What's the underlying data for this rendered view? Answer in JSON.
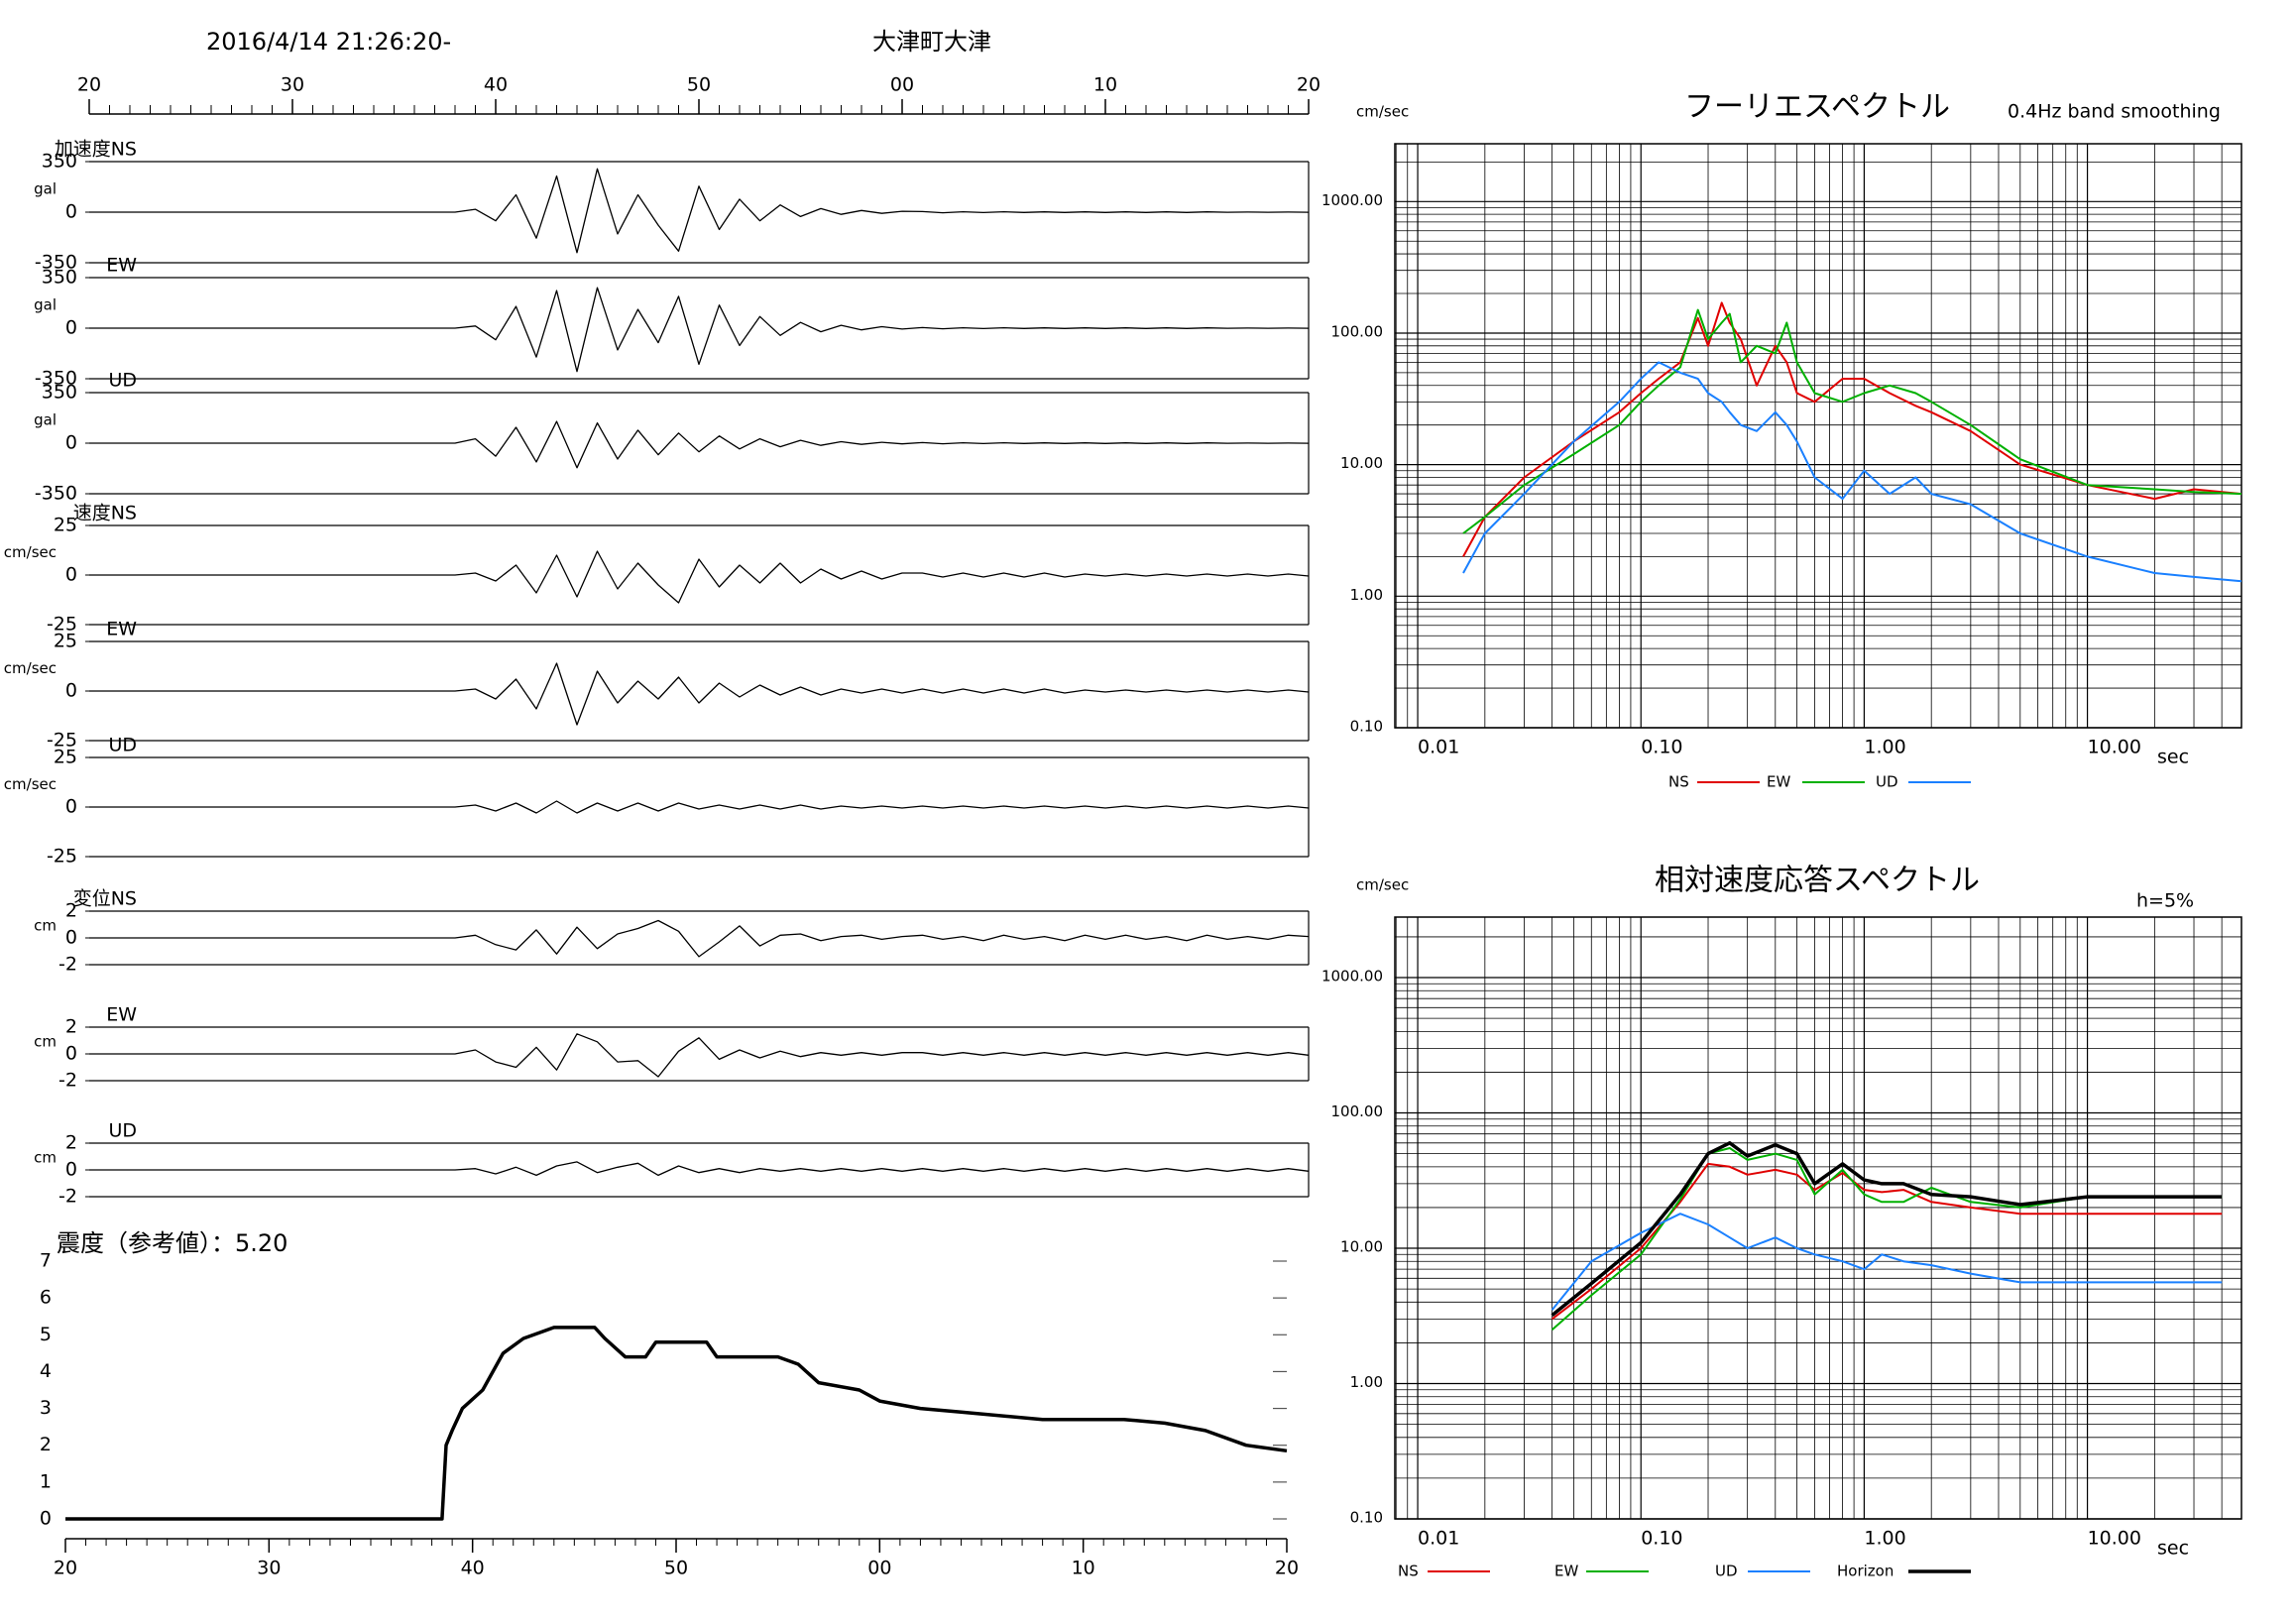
{
  "chart_data": [
    {
      "type": "waveform",
      "title": "大津町大津",
      "subtitle": "2016/4/14 21:26:20-",
      "xlim": [
        20,
        80
      ],
      "xticks": [
        20,
        30,
        40,
        50,
        {
          "value": 60,
          "label": "00"
        },
        {
          "value": 70,
          "label": "10"
        },
        {
          "value": 80,
          "label": "20"
        }
      ],
      "x": [
        20,
        38,
        39,
        40,
        41,
        42,
        43,
        44,
        45,
        46,
        47,
        48,
        49,
        50,
        51,
        52,
        53,
        54,
        55,
        56,
        57,
        58,
        59,
        60,
        61,
        62,
        63,
        64,
        65,
        66,
        67,
        68,
        69,
        70,
        71,
        72,
        73,
        74,
        75,
        76,
        77,
        78,
        79,
        80
      ],
      "panels": [
        {
          "label": "加速度NS",
          "unit": "gal",
          "ylim": [
            -350,
            350
          ],
          "yticks": [
            -350,
            0,
            350
          ],
          "values": [
            0,
            0,
            20,
            -60,
            120,
            -180,
            250,
            -280,
            300,
            -150,
            120,
            -90,
            -270,
            180,
            -120,
            90,
            -60,
            50,
            -30,
            25,
            -15,
            12,
            -8,
            6,
            4,
            -4,
            3,
            -3,
            3,
            -2,
            2,
            -2,
            2,
            -2,
            2,
            -2,
            2,
            -2,
            2,
            -1,
            1,
            -1,
            1,
            -1
          ]
        },
        {
          "label": "EW",
          "unit": "gal",
          "ylim": [
            -350,
            350
          ],
          "yticks": [
            -350,
            0,
            350
          ],
          "values": [
            0,
            0,
            15,
            -80,
            150,
            -200,
            260,
            -300,
            280,
            -150,
            130,
            -100,
            220,
            -250,
            160,
            -120,
            80,
            -50,
            40,
            -25,
            20,
            -12,
            10,
            -6,
            4,
            -4,
            3,
            -3,
            3,
            -2,
            2,
            -2,
            2,
            -2,
            2,
            -2,
            2,
            -2,
            2,
            -1,
            1,
            -1,
            1,
            -1
          ]
        },
        {
          "label": "UD",
          "unit": "gal",
          "ylim": [
            -350,
            350
          ],
          "yticks": [
            -350,
            0,
            350
          ],
          "values": [
            0,
            0,
            30,
            -90,
            110,
            -130,
            150,
            -170,
            140,
            -110,
            90,
            -80,
            70,
            -60,
            50,
            -40,
            30,
            -25,
            20,
            -15,
            10,
            -8,
            6,
            -5,
            4,
            -4,
            3,
            -3,
            3,
            -2,
            2,
            -2,
            2,
            -2,
            2,
            -2,
            2,
            -2,
            2,
            -1,
            1,
            -1,
            1,
            -1
          ]
        },
        {
          "label": "速度NS",
          "unit": "cm/sec",
          "ylim": [
            -25,
            25
          ],
          "yticks": [
            -25,
            0,
            25
          ],
          "values": [
            0,
            0,
            1,
            -3,
            5,
            -9,
            10,
            -11,
            12,
            -7,
            6,
            -5,
            -14,
            8,
            -6,
            5,
            -4,
            6,
            -4,
            3,
            -2,
            2,
            -2,
            1,
            1,
            -1,
            1,
            -1,
            1,
            -1,
            1,
            -1,
            0.5,
            -0.5,
            0.5,
            -0.5,
            0.5,
            -0.5,
            0.5,
            -0.5,
            0.5,
            -0.5,
            0.5,
            -0.5
          ]
        },
        {
          "label": "EW",
          "unit": "cm/sec",
          "ylim": [
            -25,
            25
          ],
          "yticks": [
            -25,
            0,
            25
          ],
          "values": [
            0,
            0,
            1,
            -4,
            6,
            -9,
            14,
            -17,
            10,
            -6,
            5,
            -4,
            7,
            -6,
            4,
            -3,
            3,
            -2,
            2,
            -2,
            1,
            -1,
            1,
            -1,
            1,
            -1,
            1,
            -1,
            1,
            -1,
            1,
            -1,
            0.5,
            -0.5,
            0.5,
            -0.5,
            0.5,
            -0.5,
            0.5,
            -0.5,
            0.5,
            -0.5,
            0.5,
            -0.5
          ]
        },
        {
          "label": "UD",
          "unit": "cm/sec",
          "ylim": [
            -25,
            25
          ],
          "yticks": [
            -25,
            0,
            25
          ],
          "values": [
            0,
            0,
            1,
            -2,
            2,
            -3,
            3,
            -3,
            2,
            -2,
            2,
            -2,
            2,
            -1,
            1,
            -1,
            1,
            -1,
            1,
            -1,
            0.5,
            -0.5,
            0.5,
            -0.5,
            0.5,
            -0.5,
            0.5,
            -0.5,
            0.5,
            -0.5,
            0.5,
            -0.5,
            0.5,
            -0.5,
            0.5,
            -0.5,
            0.5,
            -0.5,
            0.5,
            -0.5,
            0.5,
            -0.5,
            0.5,
            -0.5
          ]
        },
        {
          "label": "変位NS",
          "unit": "cm",
          "ylim": [
            -2,
            2
          ],
          "yticks": [
            -2,
            0,
            2
          ],
          "values": [
            0,
            0,
            0.2,
            -0.5,
            -0.9,
            0.6,
            -1.2,
            0.8,
            -0.8,
            0.3,
            0.7,
            1.3,
            0.5,
            -1.4,
            -0.3,
            0.9,
            -0.6,
            0.2,
            0.3,
            -0.2,
            0.1,
            0.2,
            -0.1,
            0.1,
            0.2,
            -0.1,
            0.1,
            -0.2,
            0.2,
            -0.1,
            0.1,
            -0.2,
            0.2,
            -0.1,
            0.2,
            -0.1,
            0.1,
            -0.2,
            0.2,
            -0.1,
            0.1,
            -0.1,
            0.2,
            0.1
          ]
        },
        {
          "label": "EW",
          "unit": "cm",
          "ylim": [
            -2,
            2
          ],
          "yticks": [
            -2,
            0,
            2
          ],
          "values": [
            0,
            0,
            0.3,
            -0.6,
            -1.0,
            0.5,
            -1.2,
            1.5,
            0.9,
            -0.6,
            -0.5,
            -1.7,
            0.2,
            1.2,
            -0.4,
            0.3,
            -0.3,
            0.2,
            -0.2,
            0.1,
            -0.1,
            0.1,
            -0.1,
            0.1,
            0.1,
            -0.1,
            0.1,
            -0.1,
            0.1,
            -0.1,
            0.1,
            -0.1,
            0.1,
            -0.1,
            0.1,
            -0.1,
            0.1,
            -0.1,
            0.1,
            -0.1,
            0.1,
            -0.1,
            0.1,
            -0.1
          ]
        },
        {
          "label": "UD",
          "unit": "cm",
          "ylim": [
            -2,
            2
          ],
          "yticks": [
            -2,
            0,
            2
          ],
          "values": [
            0,
            0,
            0.1,
            -0.3,
            0.2,
            -0.4,
            0.3,
            0.6,
            -0.2,
            0.2,
            0.5,
            -0.4,
            0.3,
            -0.2,
            0.1,
            -0.2,
            0.1,
            -0.1,
            0.1,
            -0.1,
            0.1,
            -0.1,
            0.1,
            -0.1,
            0.1,
            -0.1,
            0.1,
            -0.1,
            0.1,
            -0.1,
            0.1,
            -0.1,
            0.1,
            -0.1,
            0.1,
            -0.1,
            0.1,
            -0.1,
            0.1,
            -0.1,
            0.1,
            -0.1,
            0.1,
            -0.1
          ]
        }
      ]
    },
    {
      "type": "line",
      "title": "震度（参考値）：5.20",
      "color": "#000000",
      "xlim": [
        20,
        80
      ],
      "xticks": [
        20,
        30,
        40,
        50,
        {
          "value": 60,
          "label": "00"
        },
        {
          "value": 70,
          "label": "10"
        },
        {
          "value": 80,
          "label": "20"
        }
      ],
      "ylim": [
        0,
        7
      ],
      "yticks": [
        0,
        1,
        2,
        3,
        4,
        5,
        6,
        7
      ],
      "x": [
        20,
        38.5,
        38.7,
        39,
        39.5,
        40.5,
        41.5,
        42.5,
        43.5,
        44,
        46,
        46.5,
        47.5,
        48.5,
        49,
        51.5,
        52,
        55,
        56,
        57,
        59,
        60,
        62,
        64,
        68,
        72,
        74,
        76,
        78,
        80
      ],
      "values": [
        0,
        0,
        2,
        2.4,
        3,
        3.5,
        4.5,
        4.9,
        5.1,
        5.2,
        5.2,
        4.9,
        4.4,
        4.4,
        4.8,
        4.8,
        4.4,
        4.4,
        4.2,
        3.7,
        3.5,
        3.2,
        3.0,
        2.9,
        2.7,
        2.7,
        2.6,
        2.4,
        2.0,
        1.85
      ]
    },
    {
      "type": "logline",
      "title": "フーリエスペクトル",
      "subtitle": "0.4Hz band smoothing",
      "y_label": "cm/sec",
      "x_label": "sec",
      "log_x": true,
      "log_y": true,
      "grid": true,
      "xlim": [
        0.0079,
        49
      ],
      "ylim": [
        0.1,
        2750
      ],
      "xticks": [
        0.01,
        {
          "value": 0.1,
          "label": "0.10"
        },
        {
          "value": 1,
          "label": "1.00"
        },
        {
          "value": 10,
          "label": "10.00"
        }
      ],
      "yticks": [
        {
          "value": 0.1,
          "label": "0.10"
        },
        {
          "value": 1,
          "label": "1.00"
        },
        {
          "value": 10,
          "label": "10.00"
        },
        {
          "value": 100,
          "label": "100.00"
        },
        {
          "value": 1000,
          "label": "1000.00"
        }
      ],
      "x": [
        0.016,
        0.02,
        0.03,
        0.05,
        0.08,
        0.1,
        0.12,
        0.15,
        0.18,
        0.2,
        0.23,
        0.25,
        0.28,
        0.33,
        0.4,
        0.45,
        0.5,
        0.6,
        0.8,
        1,
        1.3,
        1.7,
        2,
        3,
        5,
        10,
        20,
        30,
        49
      ],
      "series": [
        {
          "name": "NS",
          "color": "#e00000",
          "values": [
            2,
            4,
            8,
            15,
            25,
            35,
            45,
            60,
            130,
            80,
            170,
            120,
            90,
            40,
            80,
            60,
            35,
            30,
            45,
            45,
            35,
            28,
            25,
            18,
            10,
            7,
            5.5,
            6.5,
            6
          ]
        },
        {
          "name": "EW",
          "color": "#00b000",
          "values": [
            3,
            4,
            7,
            12,
            20,
            30,
            40,
            55,
            150,
            90,
            120,
            140,
            60,
            80,
            70,
            120,
            60,
            35,
            30,
            35,
            40,
            35,
            30,
            20,
            11,
            7,
            6.5,
            6.2,
            6
          ]
        },
        {
          "name": "UD",
          "color": "#1a80ff",
          "values": [
            1.5,
            3,
            6,
            15,
            30,
            45,
            60,
            50,
            45,
            35,
            30,
            25,
            20,
            18,
            25,
            20,
            15,
            8,
            5.5,
            9,
            6,
            8,
            6,
            5,
            3,
            2,
            1.5,
            1.4,
            1.3
          ]
        }
      ]
    },
    {
      "type": "logline",
      "title": "相対速度応答スペクトル",
      "annotation": "h=5%",
      "y_label": "cm/sec",
      "x_label": "sec",
      "log_x": true,
      "log_y": true,
      "grid": true,
      "xlim": [
        0.0079,
        49
      ],
      "ylim": [
        0.1,
        2800
      ],
      "xticks": [
        0.01,
        {
          "value": 0.1,
          "label": "0.10"
        },
        {
          "value": 1,
          "label": "1.00"
        },
        {
          "value": 10,
          "label": "10.00"
        }
      ],
      "yticks": [
        {
          "value": 0.1,
          "label": "0.10"
        },
        {
          "value": 1,
          "label": "1.00"
        },
        {
          "value": 10,
          "label": "10.00"
        },
        {
          "value": 100,
          "label": "100.00"
        },
        {
          "value": 1000,
          "label": "1000.00"
        }
      ],
      "x": [
        0.04,
        0.06,
        0.1,
        0.15,
        0.2,
        0.25,
        0.3,
        0.4,
        0.5,
        0.6,
        0.8,
        1,
        1.2,
        1.5,
        2,
        3,
        5,
        10,
        20,
        40
      ],
      "series": [
        {
          "name": "NS",
          "color": "#e00000",
          "values": [
            3,
            5,
            10,
            22,
            42,
            40,
            35,
            38,
            35,
            27,
            36,
            27,
            26,
            27,
            22,
            20,
            18,
            18,
            18,
            18
          ]
        },
        {
          "name": "EW",
          "color": "#00b000",
          "values": [
            2.5,
            4.5,
            9,
            23,
            50,
            55,
            45,
            50,
            45,
            25,
            38,
            25,
            22,
            22,
            28,
            22,
            20,
            24,
            24,
            24
          ]
        },
        {
          "name": "UD",
          "color": "#1a80ff",
          "values": [
            3.5,
            8,
            13,
            18,
            15,
            12,
            10,
            12,
            10,
            9,
            8,
            7,
            9,
            8,
            7.5,
            6.5,
            5.6,
            5.6,
            5.6,
            5.6
          ]
        },
        {
          "name": "Horizon",
          "color": "#000000",
          "values": [
            3.2,
            5.5,
            11,
            25,
            50,
            60,
            48,
            58,
            50,
            30,
            42,
            32,
            30,
            30,
            25,
            24,
            21,
            24,
            24,
            24
          ]
        }
      ]
    }
  ]
}
